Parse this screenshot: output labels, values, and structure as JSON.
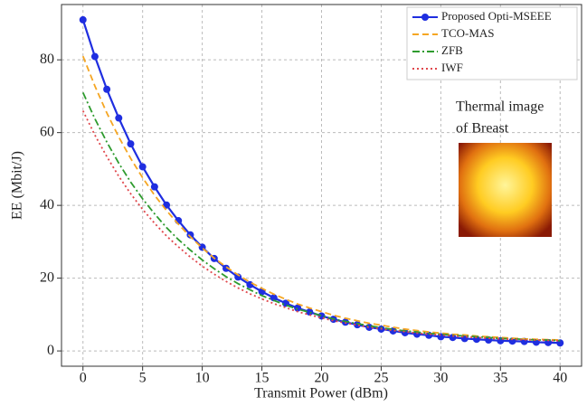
{
  "chart_data": {
    "type": "line",
    "x_label": "Transmit Power (dBm)",
    "y_label": "EE (Mbit/J)",
    "annotation": [
      "Thermal image",
      "of Breast"
    ],
    "x": [
      0,
      1,
      2,
      3,
      4,
      5,
      6,
      7,
      8,
      9,
      10,
      11,
      12,
      13,
      14,
      15,
      16,
      17,
      18,
      19,
      20,
      21,
      22,
      23,
      24,
      25,
      26,
      27,
      28,
      29,
      30,
      31,
      32,
      33,
      34,
      35,
      36,
      37,
      38,
      39,
      40
    ],
    "series": [
      {
        "name": "Proposed Opti-MSEEE",
        "color": "#1f2ee0",
        "style": "marker",
        "values": [
          91,
          80.9,
          71.9,
          64.0,
          56.9,
          50.6,
          45.1,
          40.1,
          35.8,
          31.9,
          28.5,
          25.4,
          22.7,
          20.3,
          18.2,
          16.3,
          14.6,
          13.1,
          11.8,
          10.7,
          9.6,
          8.7,
          7.9,
          7.2,
          6.5,
          6.0,
          5.5,
          5.0,
          4.6,
          4.3,
          3.9,
          3.7,
          3.4,
          3.2,
          3.0,
          2.8,
          2.7,
          2.6,
          2.4,
          2.3,
          2.2
        ]
      },
      {
        "name": "TCO-MAS",
        "color": "#f5a623",
        "style": "dashed",
        "values": [
          81,
          72.8,
          65.4,
          58.8,
          52.9,
          47.6,
          42.8,
          38.6,
          34.8,
          31.4,
          28.3,
          25.5,
          23.1,
          20.9,
          18.9,
          17.2,
          15.6,
          14.2,
          12.9,
          11.8,
          10.8,
          9.8,
          9.0,
          8.3,
          7.6,
          7.1,
          6.5,
          6.0,
          5.6,
          5.2,
          4.9,
          4.6,
          4.4,
          4.1,
          3.9,
          3.7,
          3.5,
          3.3,
          3.2,
          3.1,
          3.0
        ]
      },
      {
        "name": "ZFB",
        "color": "#2e9b2e",
        "style": "dashdot",
        "values": [
          71,
          63.8,
          57.4,
          51.6,
          46.4,
          41.8,
          37.7,
          33.9,
          30.6,
          27.7,
          25.0,
          22.6,
          20.4,
          18.5,
          16.8,
          15.2,
          13.9,
          12.6,
          11.5,
          10.6,
          9.7,
          8.8,
          8.1,
          7.5,
          6.9,
          6.4,
          5.9,
          5.5,
          5.2,
          4.8,
          4.6,
          4.3,
          4.1,
          3.9,
          3.7,
          3.4,
          3.3,
          3.2,
          3.0,
          3.0,
          2.8
        ]
      },
      {
        "name": "IWF",
        "color": "#e0474c",
        "style": "dotted",
        "values": [
          66,
          59.3,
          53.4,
          48.0,
          43.2,
          38.9,
          35.1,
          31.6,
          28.6,
          25.8,
          23.3,
          21.1,
          19.1,
          17.3,
          15.7,
          14.3,
          13.0,
          11.9,
          10.8,
          9.9,
          9.1,
          8.3,
          7.7,
          7.1,
          6.5,
          6.1,
          5.6,
          5.3,
          4.9,
          4.6,
          4.4,
          4.1,
          3.9,
          3.7,
          3.5,
          3.3,
          3.2,
          3.1,
          3.0,
          2.9,
          2.8
        ]
      }
    ],
    "xlim": [
      -1.8,
      41.8
    ],
    "xticks": [
      0,
      5,
      10,
      15,
      20,
      25,
      30,
      35,
      40
    ],
    "ylim": [
      -4.2,
      95.2
    ],
    "yticks": [
      0,
      20,
      40,
      60,
      80
    ],
    "grid": true,
    "legend": "upper right"
  }
}
